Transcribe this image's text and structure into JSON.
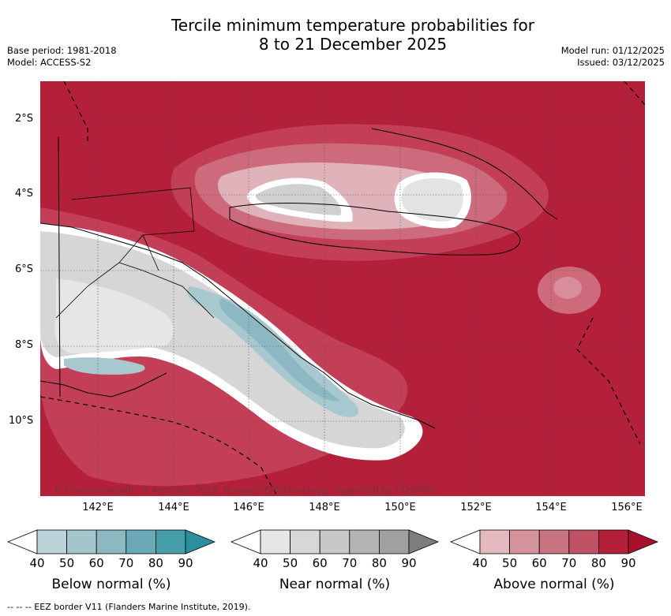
{
  "title": {
    "line1": "Tercile minimum temperature probabilities for",
    "line2": "8 to 21 December 2025"
  },
  "meta": {
    "base_period": "Base period: 1981-2018",
    "model": "Model: ACCESS-S2",
    "model_run": "Model run: 01/12/2025",
    "issued": "Issued: 03/12/2025"
  },
  "axes": {
    "lat_labels": [
      "2°S",
      "4°S",
      "6°S",
      "8°S",
      "10°S"
    ],
    "lon_labels": [
      "142°E",
      "144°E",
      "146°E",
      "148°E",
      "150°E",
      "152°E",
      "154°E",
      "156°E"
    ]
  },
  "copyright": "© Commonwealth of Australia 2025, Bureau of Meteorology, supported by COSPPac",
  "legends": [
    {
      "title": "Below normal (%)",
      "ticks": [
        "40",
        "50",
        "60",
        "70",
        "80",
        "90"
      ],
      "colors": [
        "#bcd3da",
        "#a4c5cc",
        "#8cb8c2",
        "#6aaab6",
        "#469eab",
        "#2a8f9f"
      ]
    },
    {
      "title": "Near normal (%)",
      "ticks": [
        "40",
        "50",
        "60",
        "70",
        "80",
        "90"
      ],
      "colors": [
        "#e6e6e6",
        "#d7d7d7",
        "#c8c8c8",
        "#b4b4b4",
        "#a0a0a0",
        "#7d7d7d"
      ]
    },
    {
      "title": "Above normal (%)",
      "ticks": [
        "40",
        "50",
        "60",
        "70",
        "80",
        "90"
      ],
      "colors": [
        "#e3b9bf",
        "#d6939b",
        "#ca7380",
        "#bf5365",
        "#b41f3a",
        "#a8102e"
      ]
    }
  ],
  "footnote": "--  --  -- EEZ border V11 (Flanders Marine Institute, 2019)."
}
